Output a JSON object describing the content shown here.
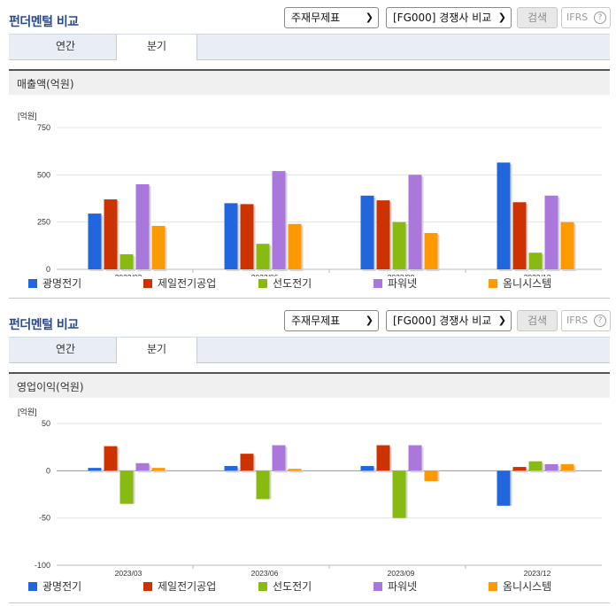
{
  "panels": [
    {
      "title": "펀더멘털 비교",
      "select1": "주재무제표",
      "select2": "[FG000] 경쟁사 비교",
      "search": "검색",
      "ifrs": "IFRS",
      "tabs": [
        "연간",
        "분기"
      ],
      "section": "매출액(억원)"
    },
    {
      "title": "펀더멘털 비교",
      "select1": "주재무제표",
      "select2": "[FG000] 경쟁사 비교",
      "search": "검색",
      "ifrs": "IFRS",
      "tabs": [
        "연간",
        "분기"
      ],
      "section": "영업이익(억원)"
    }
  ],
  "legend_colors": [
    "#2266dd",
    "#cc3300",
    "#88bb11",
    "#aa77dd",
    "#ff9900"
  ],
  "chart_data": [
    {
      "type": "bar",
      "title": "매출액(억원)",
      "unit": "[억원]",
      "categories": [
        "2023/03",
        "2023/06",
        "2023/09",
        "2023/12"
      ],
      "ylim": [
        0,
        750
      ],
      "yticks": [
        0,
        250,
        500,
        750
      ],
      "grid": true,
      "legend": "bottom",
      "series": [
        {
          "name": "광명전기",
          "values": [
            295,
            350,
            390,
            565
          ]
        },
        {
          "name": "제일전기공업",
          "values": [
            370,
            345,
            365,
            355
          ]
        },
        {
          "name": "선도전기",
          "values": [
            80,
            135,
            250,
            88
          ]
        },
        {
          "name": "파워넷",
          "values": [
            450,
            520,
            500,
            390
          ]
        },
        {
          "name": "옴니시스템",
          "values": [
            230,
            240,
            192,
            250
          ]
        }
      ]
    },
    {
      "type": "bar",
      "title": "영업이익(억원)",
      "unit": "[억원]",
      "categories": [
        "2023/03",
        "2023/06",
        "2023/09",
        "2023/12"
      ],
      "ylim": [
        -100,
        50
      ],
      "yticks": [
        -100,
        -50,
        0,
        50
      ],
      "grid": true,
      "legend": "bottom",
      "series": [
        {
          "name": "광명전기",
          "values": [
            3,
            5,
            5,
            -37
          ]
        },
        {
          "name": "제일전기공업",
          "values": [
            26,
            18,
            27,
            4
          ]
        },
        {
          "name": "선도전기",
          "values": [
            -35,
            -30,
            -50,
            10
          ]
        },
        {
          "name": "파워넷",
          "values": [
            8,
            27,
            27,
            7
          ]
        },
        {
          "name": "옴니시스템",
          "values": [
            3,
            2,
            -11,
            7
          ]
        }
      ]
    }
  ]
}
